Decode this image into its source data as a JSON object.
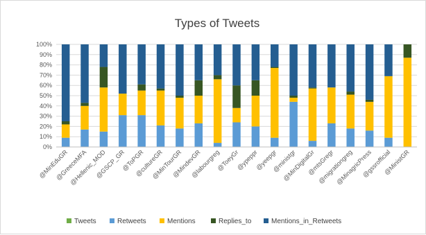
{
  "chart_data": {
    "type": "bar",
    "stacked": true,
    "percent_stacked": true,
    "title": "Types of Tweets",
    "xlabel": "",
    "ylabel": "",
    "ylim": [
      0,
      100
    ],
    "y_ticks": [
      "0%",
      "10%",
      "20%",
      "30%",
      "40%",
      "50%",
      "60%",
      "70%",
      "80%",
      "90%",
      "100%"
    ],
    "grid": true,
    "legend_position": "bottom",
    "categories": [
      "@MinEduGR",
      "@GreeceMFA",
      "@Hellenic_MOD",
      "@GSCP_GR",
      "@ToPGR",
      "@cultureGR",
      "@MinTourGR",
      "@MindevGR",
      "@labourgreg",
      "@ToeyGr",
      "@ypeppr",
      "@yeepgr",
      "@ministgr",
      "@MinDigitalGr",
      "@mtsGregr",
      "@migrationgreg",
      "@MinagricPress",
      "@gssrofficial",
      "@MinistGR"
    ],
    "series": [
      {
        "name": "Tweets",
        "color": "#70ad47",
        "values": [
          0,
          0,
          0,
          0,
          0,
          0,
          0,
          0,
          0,
          0,
          0,
          0,
          0,
          0,
          0,
          0,
          0,
          0,
          0
        ]
      },
      {
        "name": "Retweets",
        "color": "#5b9bd5",
        "values": [
          9,
          17,
          15,
          31,
          31,
          21,
          18,
          23,
          4,
          24,
          20,
          9,
          44,
          6,
          23,
          18,
          16,
          9,
          0
        ]
      },
      {
        "name": "Mentions",
        "color": "#ffc000",
        "values": [
          13,
          23,
          43,
          21,
          24,
          34,
          30,
          27,
          62,
          14,
          30,
          68,
          4,
          51,
          35,
          33,
          28,
          60,
          87
        ]
      },
      {
        "name": "Replies_to",
        "color": "#375623",
        "values": [
          3,
          3,
          20,
          0,
          6,
          2,
          2,
          15,
          4,
          22,
          15,
          1,
          2,
          1,
          0,
          3,
          2,
          0,
          13
        ]
      },
      {
        "name": "Mentions_in_Retweets",
        "color": "#255e91",
        "values": [
          75,
          57,
          22,
          48,
          39,
          43,
          50,
          35,
          30,
          40,
          35,
          22,
          50,
          42,
          42,
          46,
          54,
          31,
          0
        ]
      }
    ]
  }
}
